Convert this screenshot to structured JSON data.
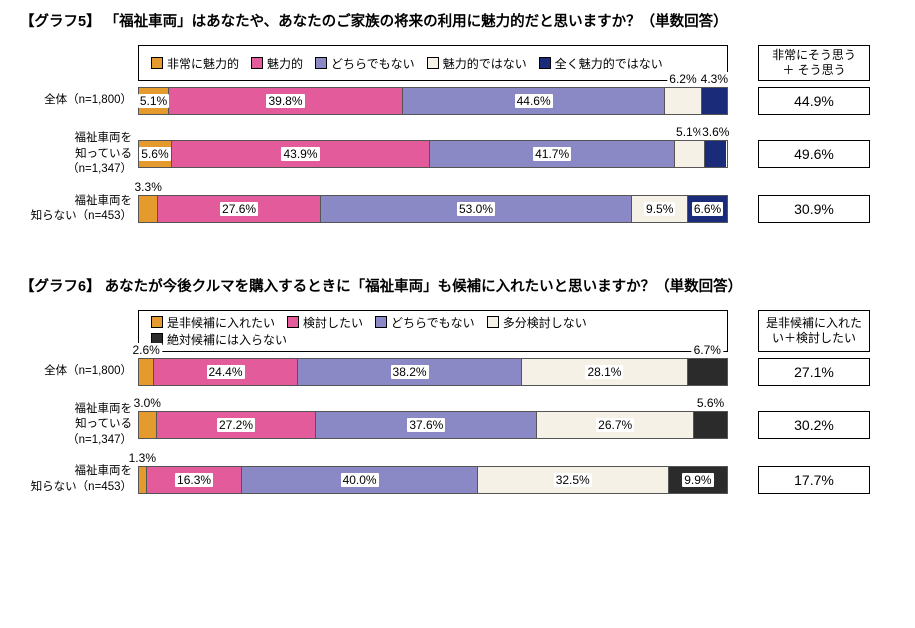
{
  "charts": [
    {
      "title": "【グラフ5】 「福祉車両」はあなたや、あなたのご家族の将来の利用に魅力的だと思いますか？（単数回答）",
      "legend": [
        {
          "label": "非常に魅力的",
          "color": "#e59a2e"
        },
        {
          "label": "魅力的",
          "color": "#e45b9b"
        },
        {
          "label": "どちらでもない",
          "color": "#8b88c6"
        },
        {
          "label": "魅力的ではない",
          "color": "#f5f1e6"
        },
        {
          "label": "全く魅力的ではない",
          "color": "#1a2b7a"
        }
      ],
      "sum_header": "非常にそう思う\n＋ そう思う",
      "rows": [
        {
          "label": "全体（n=1,800）",
          "values": [
            5.1,
            39.8,
            44.6,
            6.2,
            4.3
          ],
          "sum": "44.9%",
          "outside": [
            false,
            false,
            false,
            true,
            true
          ]
        },
        {
          "label": "福祉車両を\n知っている（n=1,347）",
          "values": [
            5.6,
            43.9,
            41.7,
            5.1,
            3.6
          ],
          "sum": "49.6%",
          "outside": [
            false,
            false,
            false,
            true,
            true
          ]
        },
        {
          "label": "福祉車両を\n知らない（n=453）",
          "values": [
            3.3,
            27.6,
            53.0,
            9.5,
            6.6
          ],
          "sum": "30.9%",
          "outside": [
            true,
            false,
            false,
            false,
            false
          ]
        }
      ]
    },
    {
      "title": "【グラフ6】 あなたが今後クルマを購入するときに「福祉車両」も候補に入れたいと思いますか？（単数回答）",
      "legend": [
        {
          "label": "是非候補に入れたい",
          "color": "#e59a2e"
        },
        {
          "label": "検討したい",
          "color": "#e45b9b"
        },
        {
          "label": "どちらでもない",
          "color": "#8b88c6"
        },
        {
          "label": "多分検討しない",
          "color": "#f5f1e6"
        },
        {
          "label": "絶対候補には入らない",
          "color": "#2b2b2b"
        }
      ],
      "sum_header": "是非候補に入れた\nい＋検討したい",
      "rows": [
        {
          "label": "全体（n=1,800）",
          "values": [
            2.6,
            24.4,
            38.2,
            28.1,
            6.7
          ],
          "sum": "27.1%",
          "outside": [
            true,
            false,
            false,
            false,
            true
          ]
        },
        {
          "label": "福祉車両を\n知っている（n=1,347）",
          "values": [
            3.0,
            27.2,
            37.6,
            26.7,
            5.6
          ],
          "sum": "30.2%",
          "outside": [
            true,
            false,
            false,
            false,
            true
          ]
        },
        {
          "label": "福祉車両を\n知らない（n=453）",
          "values": [
            1.3,
            16.3,
            40.0,
            32.5,
            9.9
          ],
          "sum": "17.7%",
          "outside": [
            true,
            false,
            false,
            false,
            false
          ]
        }
      ]
    }
  ]
}
